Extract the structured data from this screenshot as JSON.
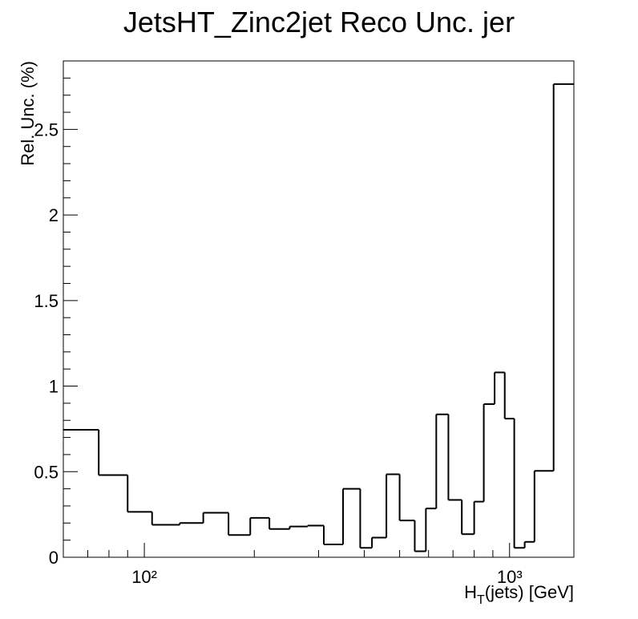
{
  "chart_data": {
    "type": "histogram",
    "title": "JetsHT_Zinc2jet Reco Unc. jer",
    "ylabel": "Rel. Unc. (%)",
    "xlabel": {
      "main": "H",
      "sub": "T",
      "rest": "(jets) [GeV]"
    },
    "log_x": true,
    "color": "#000000",
    "bins": [
      60,
      75,
      90,
      105,
      125,
      145,
      170,
      195,
      220,
      250,
      280,
      310,
      350,
      390,
      420,
      460,
      500,
      550,
      590,
      630,
      680,
      740,
      800,
      850,
      910,
      970,
      1030,
      1100,
      1170,
      1320,
      1500
    ],
    "values": [
      0.745,
      0.48,
      0.265,
      0.19,
      0.2,
      0.26,
      0.13,
      0.23,
      0.165,
      0.18,
      0.185,
      0.075,
      0.4,
      0.055,
      0.115,
      0.485,
      0.215,
      0.035,
      0.285,
      0.835,
      0.335,
      0.135,
      0.325,
      0.895,
      1.08,
      0.81,
      0.055,
      0.09,
      0.505,
      2.765
    ],
    "xlim": [
      60,
      1500
    ],
    "xticks": [
      {
        "value": 100,
        "label": "10²"
      },
      {
        "value": 1000,
        "label": "10³"
      }
    ],
    "xminor_ticks": [
      70,
      80,
      90,
      200,
      300,
      400,
      500,
      600,
      700,
      800,
      900
    ],
    "ylim": [
      0,
      2.9
    ],
    "yticks": [
      0,
      0.5,
      1,
      1.5,
      2,
      2.5
    ],
    "yminor_ticks": [
      0.1,
      0.2,
      0.3,
      0.4,
      0.6,
      0.7,
      0.8,
      0.9,
      1.1,
      1.2,
      1.3,
      1.4,
      1.6,
      1.7,
      1.8,
      1.9,
      2.1,
      2.2,
      2.3,
      2.4,
      2.6,
      2.7,
      2.8
    ]
  }
}
